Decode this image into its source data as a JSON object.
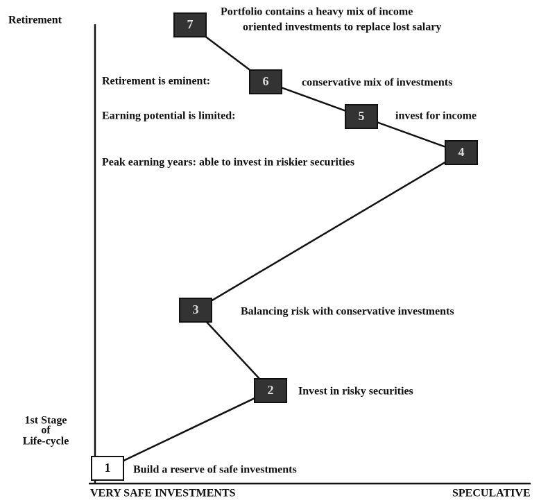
{
  "y_axis": {
    "top_label": "Retirement",
    "bottom_label": [
      "1st Stage",
      "of",
      "Life-cycle"
    ]
  },
  "x_axis": {
    "left_label": "VERY SAFE INVESTMENTS",
    "right_label": "SPECULATIVE"
  },
  "nodes": [
    {
      "label": "1",
      "text": [
        "Build a reserve of safe investments"
      ]
    },
    {
      "label": "2",
      "text": [
        "Invest in risky securities"
      ]
    },
    {
      "label": "3",
      "text": [
        "Balancing risk with conservative investments"
      ]
    },
    {
      "label": "4",
      "text": [
        "Peak earning years: able to invest in riskier securities"
      ]
    },
    {
      "label": "5",
      "text": [
        "Earning potential is limited:",
        "invest for income"
      ]
    },
    {
      "label": "6",
      "text": [
        "Retirement is eminent:",
        "conservative mix of investments"
      ]
    },
    {
      "label": "7",
      "text": [
        "Portfolio contains a heavy mix of income",
        "oriented investments to replace lost salary"
      ]
    }
  ]
}
